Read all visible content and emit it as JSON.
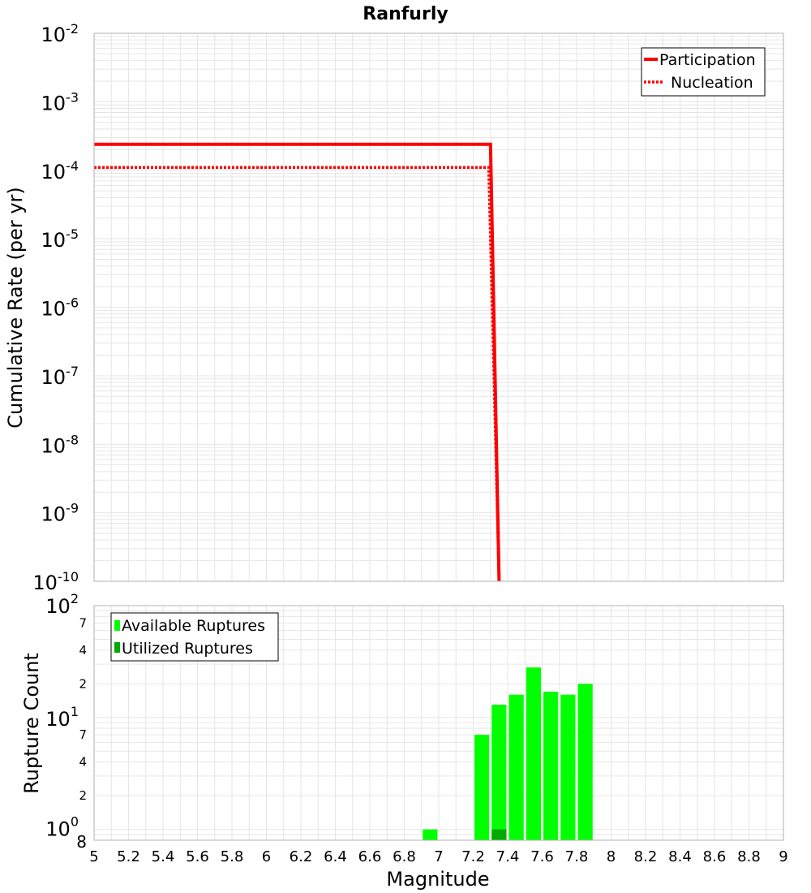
{
  "title": "Ranfurly",
  "xlabel": "Magnitude",
  "colors": {
    "participation": "#ff0000",
    "nucleation": "#ff0000",
    "available": "#00ff00",
    "utilized": "#00aa00",
    "grid": "#e6e6e6",
    "frame": "#b0b0b0"
  },
  "chart_data": [
    {
      "type": "line",
      "ylabel": "Cumulative Rate (per yr)",
      "yscale": "log",
      "xlim": [
        5,
        9
      ],
      "ylim": [
        1e-10,
        0.01
      ],
      "y_ticks": [
        {
          "base": "10",
          "exp": "-2"
        },
        {
          "base": "10",
          "exp": "-3"
        },
        {
          "base": "10",
          "exp": "-4"
        },
        {
          "base": "10",
          "exp": "-5"
        },
        {
          "base": "10",
          "exp": "-6"
        },
        {
          "base": "10",
          "exp": "-7"
        },
        {
          "base": "10",
          "exp": "-8"
        },
        {
          "base": "10",
          "exp": "-9"
        },
        {
          "base": "10",
          "exp": "-10"
        }
      ],
      "legend_position": "top-right",
      "series": [
        {
          "name": "Participation",
          "style": "solid",
          "x": [
            5.0,
            7.3,
            7.35
          ],
          "y": [
            0.00024,
            0.00024,
            1e-10
          ]
        },
        {
          "name": "Nucleation",
          "style": "dotted",
          "x": [
            5.0,
            7.29,
            7.35
          ],
          "y": [
            0.00011,
            0.00011,
            1e-10
          ]
        }
      ]
    },
    {
      "type": "bar",
      "ylabel": "Rupture Count",
      "yscale": "log",
      "xlim": [
        5,
        9
      ],
      "ylim": [
        0.8,
        100
      ],
      "x_ticks": [
        "5",
        "5.2",
        "5.4",
        "5.6",
        "5.8",
        "6",
        "6.2",
        "6.4",
        "6.6",
        "6.8",
        "7",
        "7.2",
        "7.4",
        "7.6",
        "7.8",
        "8",
        "8.2",
        "8.4",
        "8.6",
        "8.8",
        "9"
      ],
      "y_major_ticks": [
        {
          "base": "10",
          "exp": "0"
        },
        {
          "base": "10",
          "exp": "1"
        },
        {
          "base": "10",
          "exp": "2"
        }
      ],
      "y_minor_labels": [
        "8",
        "2",
        "4",
        "7",
        "2",
        "4",
        "7"
      ],
      "bin_width": 0.1,
      "legend_position": "top-left",
      "series": [
        {
          "name": "Available Ruptures",
          "x": [
            6.95,
            7.25,
            7.35,
            7.45,
            7.55,
            7.65,
            7.75,
            7.85
          ],
          "values": [
            1,
            7,
            13,
            16,
            28,
            17,
            16,
            20
          ]
        },
        {
          "name": "Utilized Ruptures",
          "x": [
            7.35
          ],
          "values": [
            1
          ]
        }
      ]
    }
  ]
}
